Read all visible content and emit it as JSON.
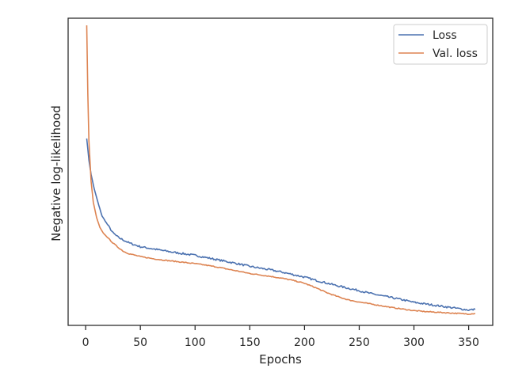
{
  "chart_data": {
    "type": "line",
    "title": "",
    "xlabel": "Epochs",
    "ylabel": "Negative log-likelihood",
    "xlim": [
      -16,
      372
    ],
    "ylim": [
      0,
      1
    ],
    "xticks": [
      0,
      50,
      100,
      150,
      200,
      250,
      300,
      350
    ],
    "yticks": [],
    "grid": false,
    "legend": "top-right",
    "series": [
      {
        "name": "Loss",
        "color": "#4c72b0",
        "points": [
          [
            1,
            0.609
          ],
          [
            3,
            0.538
          ],
          [
            5,
            0.491
          ],
          [
            8,
            0.442
          ],
          [
            12,
            0.391
          ],
          [
            15,
            0.356
          ],
          [
            20,
            0.328
          ],
          [
            25,
            0.301
          ],
          [
            30,
            0.286
          ],
          [
            35,
            0.277
          ],
          [
            40,
            0.268
          ],
          [
            45,
            0.262
          ],
          [
            50,
            0.256
          ],
          [
            60,
            0.25
          ],
          [
            70,
            0.244
          ],
          [
            80,
            0.238
          ],
          [
            90,
            0.233
          ],
          [
            100,
            0.228
          ],
          [
            110,
            0.221
          ],
          [
            120,
            0.214
          ],
          [
            130,
            0.207
          ],
          [
            140,
            0.2
          ],
          [
            150,
            0.192
          ],
          [
            160,
            0.186
          ],
          [
            170,
            0.18
          ],
          [
            180,
            0.173
          ],
          [
            190,
            0.165
          ],
          [
            200,
            0.157
          ],
          [
            210,
            0.147
          ],
          [
            220,
            0.138
          ],
          [
            230,
            0.129
          ],
          [
            240,
            0.121
          ],
          [
            250,
            0.113
          ],
          [
            260,
            0.104
          ],
          [
            270,
            0.097
          ],
          [
            280,
            0.09
          ],
          [
            290,
            0.083
          ],
          [
            300,
            0.075
          ],
          [
            310,
            0.07
          ],
          [
            320,
            0.065
          ],
          [
            330,
            0.06
          ],
          [
            340,
            0.055
          ],
          [
            350,
            0.05
          ],
          [
            356,
            0.052
          ]
        ]
      },
      {
        "name": "Val. loss",
        "color": "#dd8452",
        "points": [
          [
            1,
            0.977
          ],
          [
            2,
            0.753
          ],
          [
            3,
            0.6
          ],
          [
            5,
            0.468
          ],
          [
            7,
            0.401
          ],
          [
            10,
            0.351
          ],
          [
            13,
            0.319
          ],
          [
            16,
            0.301
          ],
          [
            20,
            0.286
          ],
          [
            25,
            0.268
          ],
          [
            30,
            0.253
          ],
          [
            35,
            0.24
          ],
          [
            40,
            0.233
          ],
          [
            50,
            0.224
          ],
          [
            60,
            0.218
          ],
          [
            70,
            0.213
          ],
          [
            80,
            0.209
          ],
          [
            90,
            0.205
          ],
          [
            100,
            0.201
          ],
          [
            110,
            0.196
          ],
          [
            120,
            0.19
          ],
          [
            130,
            0.183
          ],
          [
            140,
            0.176
          ],
          [
            150,
            0.169
          ],
          [
            160,
            0.164
          ],
          [
            170,
            0.159
          ],
          [
            180,
            0.153
          ],
          [
            190,
            0.146
          ],
          [
            200,
            0.137
          ],
          [
            210,
            0.123
          ],
          [
            220,
            0.107
          ],
          [
            230,
            0.094
          ],
          [
            240,
            0.083
          ],
          [
            250,
            0.076
          ],
          [
            260,
            0.07
          ],
          [
            270,
            0.064
          ],
          [
            280,
            0.058
          ],
          [
            290,
            0.053
          ],
          [
            300,
            0.048
          ],
          [
            310,
            0.045
          ],
          [
            320,
            0.043
          ],
          [
            330,
            0.041
          ],
          [
            340,
            0.039
          ],
          [
            350,
            0.037
          ],
          [
            356,
            0.039
          ]
        ]
      }
    ]
  }
}
